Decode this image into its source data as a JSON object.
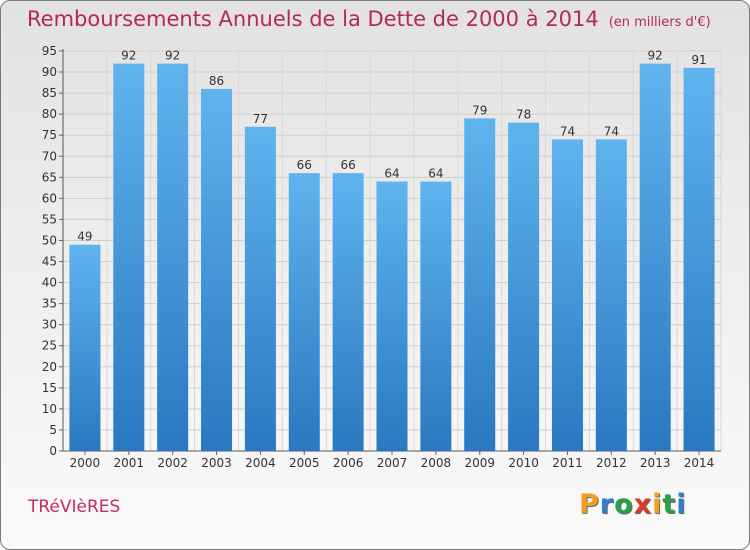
{
  "title": "Remboursements Annuels de la Dette de 2000 à 2014",
  "unit_note": "(en milliers d'€)",
  "commune": "TRéVIèRES",
  "logo": {
    "text": "Proxiti",
    "letters": [
      "P",
      "r",
      "o",
      "x",
      "i",
      "t",
      "i"
    ],
    "colors": [
      "#f0a020",
      "#2f7fd0",
      "#2aa04a",
      "#d93a2a",
      "#f0a020",
      "#2aa04a",
      "#2f7fd0"
    ]
  },
  "colors": {
    "bar_light": "#5fb4ee",
    "bar_dark": "#2a78c0",
    "title": "#b5275f"
  },
  "chart_data": {
    "type": "bar",
    "title": "Remboursements Annuels de la Dette de 2000 à 2014",
    "categories": [
      "2000",
      "2001",
      "2002",
      "2003",
      "2004",
      "2005",
      "2006",
      "2007",
      "2008",
      "2009",
      "2010",
      "2011",
      "2012",
      "2013",
      "2014"
    ],
    "values": [
      49,
      92,
      92,
      86,
      77,
      66,
      66,
      64,
      64,
      79,
      78,
      74,
      74,
      92,
      91
    ],
    "ylim": [
      0,
      95
    ],
    "yticks": [
      0,
      5,
      10,
      15,
      20,
      25,
      30,
      35,
      40,
      45,
      50,
      55,
      60,
      65,
      70,
      75,
      80,
      85,
      90,
      95
    ],
    "grid": true,
    "legend": "none"
  }
}
